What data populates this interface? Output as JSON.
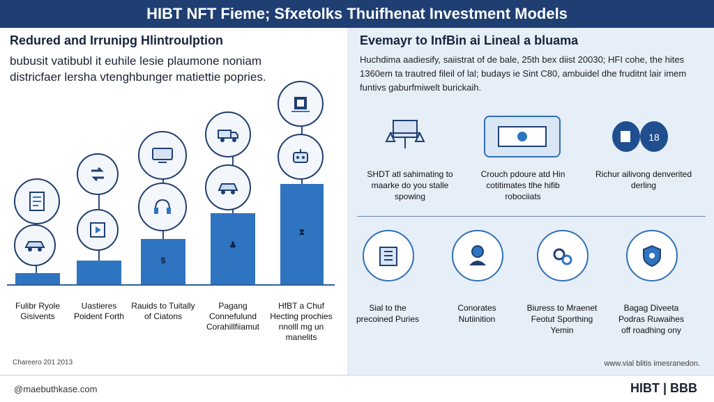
{
  "header": {
    "title": "HIBT NFT Fieme; Sfxetolks Thuifhenat Investment Models"
  },
  "left": {
    "title": "Redured and Irrunipg Hlintroulption",
    "intro": "bubusit vatibubl it euhile lesie plaumone noniam districfaer lersha vtenghbunger matiettie popries.",
    "steps": [
      {
        "label": "Fulibr Ryole Gisivents",
        "icon": "document-icon"
      },
      {
        "label": "Uastieres Poident Forth",
        "icon": "swap-icon",
        "bar_mark": ""
      },
      {
        "label": "Rauids to Tuitally of Ciatons",
        "icon": "screen-icon",
        "bar_mark": "$"
      },
      {
        "label": "Pagang Connefulund Corahillfiiamut",
        "icon": "truck-icon",
        "bar_mark": "♟"
      },
      {
        "label": "HfBT a Chuf Hecting prochies nnolll mg un manelits",
        "icon": "chip-icon",
        "bar_mark": "⧗"
      }
    ],
    "footnote": "Chareero 201 2013"
  },
  "right": {
    "title": "Evemayr to InfBin ai Lineal a bluama",
    "intro": "Huchdima aadiesify, saiistrat of de bale, 25th bex diist 20030; HFI cohe, the hites 1360em ta trautred fileil of lal; budays ie Sint C80, ambuidel dhe fruditnt lair imem funtivs gaburfmiwelt burickaih.",
    "top_cards": [
      {
        "label": "SHDT atl sahimating to maarke do you stalle spowing",
        "icon": "scale-icon"
      },
      {
        "label": "Crouch pdoure atd Hin cotitimates tlhe hifib robociiats",
        "icon": "ticket-icon"
      },
      {
        "label": "Richur ailivong denverited derling",
        "icon": "cash-icon",
        "badge": "18"
      }
    ],
    "bottom_cards": [
      {
        "label": "Sial to the precoined Puries",
        "icon": "building-icon"
      },
      {
        "label": "Conorates Nutiinition",
        "icon": "person-icon"
      },
      {
        "label": "Biuress to Mraenet Feotut Sporthing Yemin",
        "icon": "gears-icon"
      },
      {
        "label": "Bagag Diveeta Podras Ruwaihes off roadhing ony",
        "icon": "shield-icon"
      }
    ],
    "credit": "www.vial blitis imesranedon."
  },
  "footer": {
    "handle": "@maebuthkase.com",
    "brand": "HIBT | BBB"
  },
  "colors": {
    "accent": "#2f74c0",
    "header": "#1f3f73",
    "panel": "#e6eef7"
  }
}
